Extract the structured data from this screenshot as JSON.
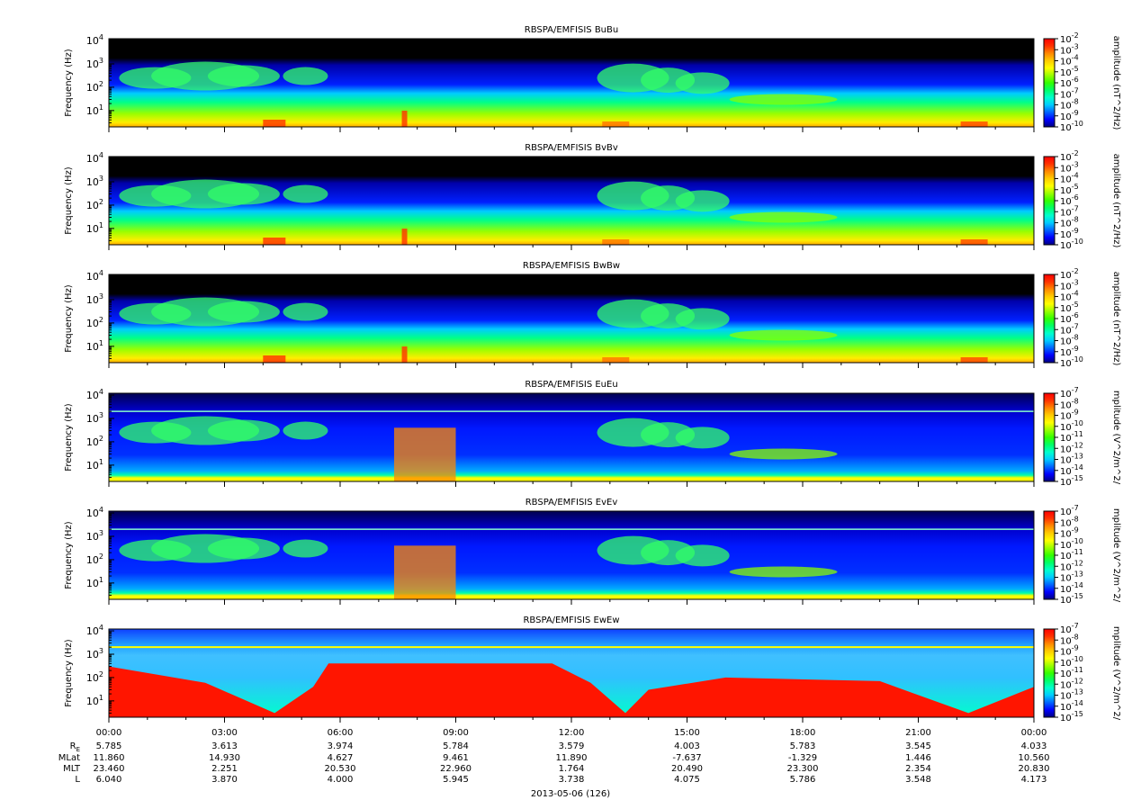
{
  "figure": {
    "xlabel": "2013-05-06 (126)",
    "time_ticks": [
      "00:00",
      "03:00",
      "06:00",
      "09:00",
      "12:00",
      "15:00",
      "18:00",
      "21:00",
      "00:00"
    ],
    "ephemeris": {
      "labels": [
        "R",
        "MLat",
        "MLT",
        "L"
      ],
      "r_subscript": "E",
      "rows": [
        [
          "5.785",
          "3.613",
          "3.974",
          "5.784",
          "3.579",
          "4.003",
          "5.783",
          "3.545",
          "4.033"
        ],
        [
          "11.860",
          "14.930",
          "4.627",
          "9.461",
          "11.890",
          "-7.637",
          "-1.329",
          "1.446",
          "10.560"
        ],
        [
          "23.460",
          "2.251",
          "20.530",
          "22.960",
          "1.764",
          "20.490",
          "23.300",
          "2.354",
          "20.830"
        ],
        [
          "6.040",
          "3.870",
          "4.000",
          "5.945",
          "3.738",
          "4.075",
          "5.786",
          "3.548",
          "4.173"
        ]
      ]
    }
  },
  "chart_data": [
    {
      "type": "heatmap",
      "title": "RBSPA/EMFISIS  BuBu",
      "ylabel": "Frequency (Hz)",
      "yscale": "log",
      "ylim": [
        2,
        12000
      ],
      "yticks": [
        {
          "base": "10",
          "exp": "1"
        },
        {
          "base": "10",
          "exp": "2"
        },
        {
          "base": "10",
          "exp": "3"
        },
        {
          "base": "10",
          "exp": "4"
        }
      ],
      "colorbar_label": "amplitude (nT^2/Hz)",
      "colorbar_scale": "log",
      "colorbar_ticks": [
        {
          "base": "10",
          "exp": "-2"
        },
        {
          "base": "10",
          "exp": "-3"
        },
        {
          "base": "10",
          "exp": "-4"
        },
        {
          "base": "10",
          "exp": "-5"
        },
        {
          "base": "10",
          "exp": "-6"
        },
        {
          "base": "10",
          "exp": "-7"
        },
        {
          "base": "10",
          "exp": "-8"
        },
        {
          "base": "10",
          "exp": "-9"
        },
        {
          "base": "10",
          "exp": "-10"
        }
      ],
      "xlim_hours": [
        0,
        24
      ]
    },
    {
      "type": "heatmap",
      "title": "RBSPA/EMFISIS  BvBv",
      "ylabel": "Frequency (Hz)",
      "yscale": "log",
      "ylim": [
        2,
        12000
      ],
      "yticks": [
        {
          "base": "10",
          "exp": "1"
        },
        {
          "base": "10",
          "exp": "2"
        },
        {
          "base": "10",
          "exp": "3"
        },
        {
          "base": "10",
          "exp": "4"
        }
      ],
      "colorbar_label": "amplitude (nT^2/Hz)",
      "colorbar_scale": "log",
      "colorbar_ticks": [
        {
          "base": "10",
          "exp": "-2"
        },
        {
          "base": "10",
          "exp": "-3"
        },
        {
          "base": "10",
          "exp": "-4"
        },
        {
          "base": "10",
          "exp": "-5"
        },
        {
          "base": "10",
          "exp": "-6"
        },
        {
          "base": "10",
          "exp": "-7"
        },
        {
          "base": "10",
          "exp": "-8"
        },
        {
          "base": "10",
          "exp": "-9"
        },
        {
          "base": "10",
          "exp": "-10"
        }
      ],
      "xlim_hours": [
        0,
        24
      ]
    },
    {
      "type": "heatmap",
      "title": "RBSPA/EMFISIS  BwBw",
      "ylabel": "Frequency (Hz)",
      "yscale": "log",
      "ylim": [
        2,
        12000
      ],
      "yticks": [
        {
          "base": "10",
          "exp": "1"
        },
        {
          "base": "10",
          "exp": "2"
        },
        {
          "base": "10",
          "exp": "3"
        },
        {
          "base": "10",
          "exp": "4"
        }
      ],
      "colorbar_label": "amplitude (nT^2/Hz)",
      "colorbar_scale": "log",
      "colorbar_ticks": [
        {
          "base": "10",
          "exp": "-2"
        },
        {
          "base": "10",
          "exp": "-3"
        },
        {
          "base": "10",
          "exp": "-4"
        },
        {
          "base": "10",
          "exp": "-5"
        },
        {
          "base": "10",
          "exp": "-6"
        },
        {
          "base": "10",
          "exp": "-7"
        },
        {
          "base": "10",
          "exp": "-8"
        },
        {
          "base": "10",
          "exp": "-9"
        },
        {
          "base": "10",
          "exp": "-10"
        }
      ],
      "xlim_hours": [
        0,
        24
      ]
    },
    {
      "type": "heatmap",
      "title": "RBSPA/EMFISIS  EuEu",
      "ylabel": "Frequency (Hz)",
      "yscale": "log",
      "ylim": [
        2,
        12000
      ],
      "yticks": [
        {
          "base": "10",
          "exp": "1"
        },
        {
          "base": "10",
          "exp": "2"
        },
        {
          "base": "10",
          "exp": "3"
        },
        {
          "base": "10",
          "exp": "4"
        }
      ],
      "colorbar_label": "mplitude (V^2/m^2/",
      "colorbar_scale": "log",
      "colorbar_ticks": [
        {
          "base": "10",
          "exp": "-7"
        },
        {
          "base": "10",
          "exp": "-8"
        },
        {
          "base": "10",
          "exp": "-9"
        },
        {
          "base": "10",
          "exp": "-10"
        },
        {
          "base": "10",
          "exp": "-11"
        },
        {
          "base": "10",
          "exp": "-12"
        },
        {
          "base": "10",
          "exp": "-13"
        },
        {
          "base": "10",
          "exp": "-14"
        },
        {
          "base": "10",
          "exp": "-15"
        }
      ],
      "xlim_hours": [
        0,
        24
      ]
    },
    {
      "type": "heatmap",
      "title": "RBSPA/EMFISIS  EvEv",
      "ylabel": "Frequency (Hz)",
      "yscale": "log",
      "ylim": [
        2,
        12000
      ],
      "yticks": [
        {
          "base": "10",
          "exp": "1"
        },
        {
          "base": "10",
          "exp": "2"
        },
        {
          "base": "10",
          "exp": "3"
        },
        {
          "base": "10",
          "exp": "4"
        }
      ],
      "colorbar_label": "mplitude (V^2/m^2/",
      "colorbar_scale": "log",
      "colorbar_ticks": [
        {
          "base": "10",
          "exp": "-7"
        },
        {
          "base": "10",
          "exp": "-8"
        },
        {
          "base": "10",
          "exp": "-9"
        },
        {
          "base": "10",
          "exp": "-10"
        },
        {
          "base": "10",
          "exp": "-11"
        },
        {
          "base": "10",
          "exp": "-12"
        },
        {
          "base": "10",
          "exp": "-13"
        },
        {
          "base": "10",
          "exp": "-14"
        },
        {
          "base": "10",
          "exp": "-15"
        }
      ],
      "xlim_hours": [
        0,
        24
      ]
    },
    {
      "type": "heatmap",
      "title": "RBSPA/EMFISIS  EwEw",
      "ylabel": "Frequency (Hz)",
      "yscale": "log",
      "ylim": [
        2,
        12000
      ],
      "yticks": [
        {
          "base": "10",
          "exp": "1"
        },
        {
          "base": "10",
          "exp": "2"
        },
        {
          "base": "10",
          "exp": "3"
        },
        {
          "base": "10",
          "exp": "4"
        }
      ],
      "colorbar_label": "mplitude (V^2/m^2/",
      "colorbar_scale": "log",
      "colorbar_ticks": [
        {
          "base": "10",
          "exp": "-7"
        },
        {
          "base": "10",
          "exp": "-8"
        },
        {
          "base": "10",
          "exp": "-9"
        },
        {
          "base": "10",
          "exp": "-10"
        },
        {
          "base": "10",
          "exp": "-11"
        },
        {
          "base": "10",
          "exp": "-12"
        },
        {
          "base": "10",
          "exp": "-13"
        },
        {
          "base": "10",
          "exp": "-14"
        },
        {
          "base": "10",
          "exp": "-15"
        }
      ],
      "xlim_hours": [
        0,
        24
      ]
    }
  ],
  "colormap": [
    "#000080",
    "#0000ff",
    "#0066ff",
    "#00ccff",
    "#00ffcc",
    "#00ff66",
    "#33ff00",
    "#99ff00",
    "#ffff00",
    "#ffcc00",
    "#ff8800",
    "#ff3300",
    "#ff0000"
  ]
}
